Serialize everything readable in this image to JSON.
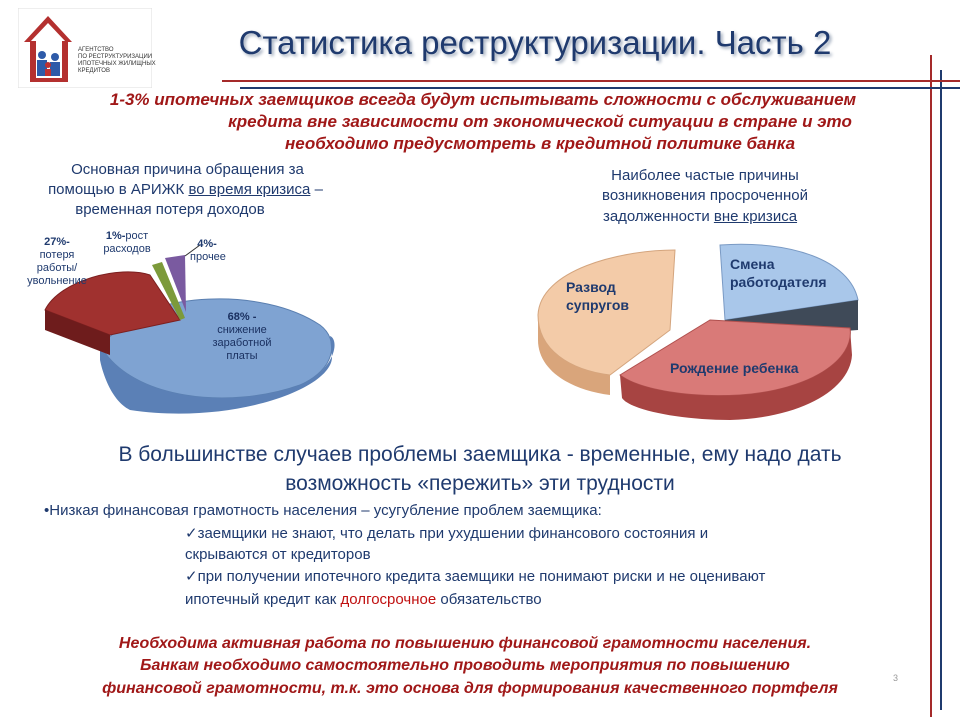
{
  "header": {
    "title": "Статистика реструктуризации. Часть 2",
    "logo_text": [
      "АГЕНТСТВО",
      "ПО РЕСТРУКТУРИЗАЦИИ",
      "ИПОТЕЧНЫХ ЖИЛИЩНЫХ",
      "КРЕДИТОВ"
    ]
  },
  "warning": {
    "line1": "1-3% ипотечных заемщиков  всегда будут испытывать сложности с обслуживанием",
    "line2": "кредита вне зависимости от экономической ситуации в стране и это",
    "line3": "необходимо предусмотреть в кредитной политике банка"
  },
  "left_chart": {
    "heading_line1": "Основная  причина  обращения  за",
    "heading_line2_pre": "помощью в АРИЖК ",
    "heading_line2_u": "во время кризиса",
    "heading_line2_post": " –",
    "heading_line3": "временная  потеря  доходов",
    "labels": {
      "s27_pct": "27%-",
      "s27_text": "потеря работы/увольнение",
      "s1_pct": "1%-",
      "s1_text": "рост расходов",
      "s4_pct": "4%-",
      "s4_text": "прочее",
      "s68_pct": "68% -",
      "s68_text": "снижение заработной платы"
    }
  },
  "right_chart": {
    "heading_line1": "Наиболее  частые  причины",
    "heading_line2": "возникновения  просроченной",
    "heading_line3_pre": "задолженности  ",
    "heading_line3_u": "вне кризиса",
    "labels": {
      "divorce": "Развод супругов",
      "job_change": "Смена работодателя",
      "childbirth": "Рождение ребенка"
    }
  },
  "chart_data": [
    {
      "type": "pie",
      "categories": [
        "снижение заработной платы",
        "потеря работы/увольнение",
        "рост расходов",
        "прочее"
      ],
      "values": [
        68,
        27,
        1,
        4
      ],
      "colors": [
        "#7fa3d2",
        "#a0312f",
        "#7c9a3a",
        "#7a5aa0"
      ],
      "title": "Основная причина обращения за помощью в АРИЖК во время кризиса – временная потеря доходов"
    },
    {
      "type": "pie",
      "categories": [
        "Развод супругов",
        "Смена работодателя",
        "Рождение ребенка"
      ],
      "values": [
        35,
        20,
        45
      ],
      "colors": [
        "#f3cba8",
        "#a9c7ea",
        "#d97a78"
      ],
      "title": "Наиболее частые причины возникновения просроченной задолженности вне кризиса"
    }
  ],
  "summary": {
    "line1": "В большинстве случаев проблемы заемщика  - временные, ему надо дать",
    "line2": "возможность «пережить» эти трудности"
  },
  "body": {
    "bullet1": "•Низкая финансовая грамотность населения – усугубление проблем заемщика:",
    "item1a": "✓заемщики не знают, что делать при ухудшении финансового состояния и",
    "item1b": "скрываются от кредиторов",
    "item2a": "✓при  получении ипотечного кредита заемщики не понимают риски и не оценивают",
    "item2b_pre": "ипотечный кредит как  ",
    "item2b_red": "долгосрочное",
    "item2b_post": " обязательство"
  },
  "footer": {
    "line1": "Необходима активная работа по повышению финансовой грамотности населения.",
    "line2": "Банкам необходимо самостоятельно проводить мероприятия по повышению",
    "line3": "финансовой  грамотности, т.к. это основа для формирования качественного портфеля",
    "page_number": "3"
  }
}
